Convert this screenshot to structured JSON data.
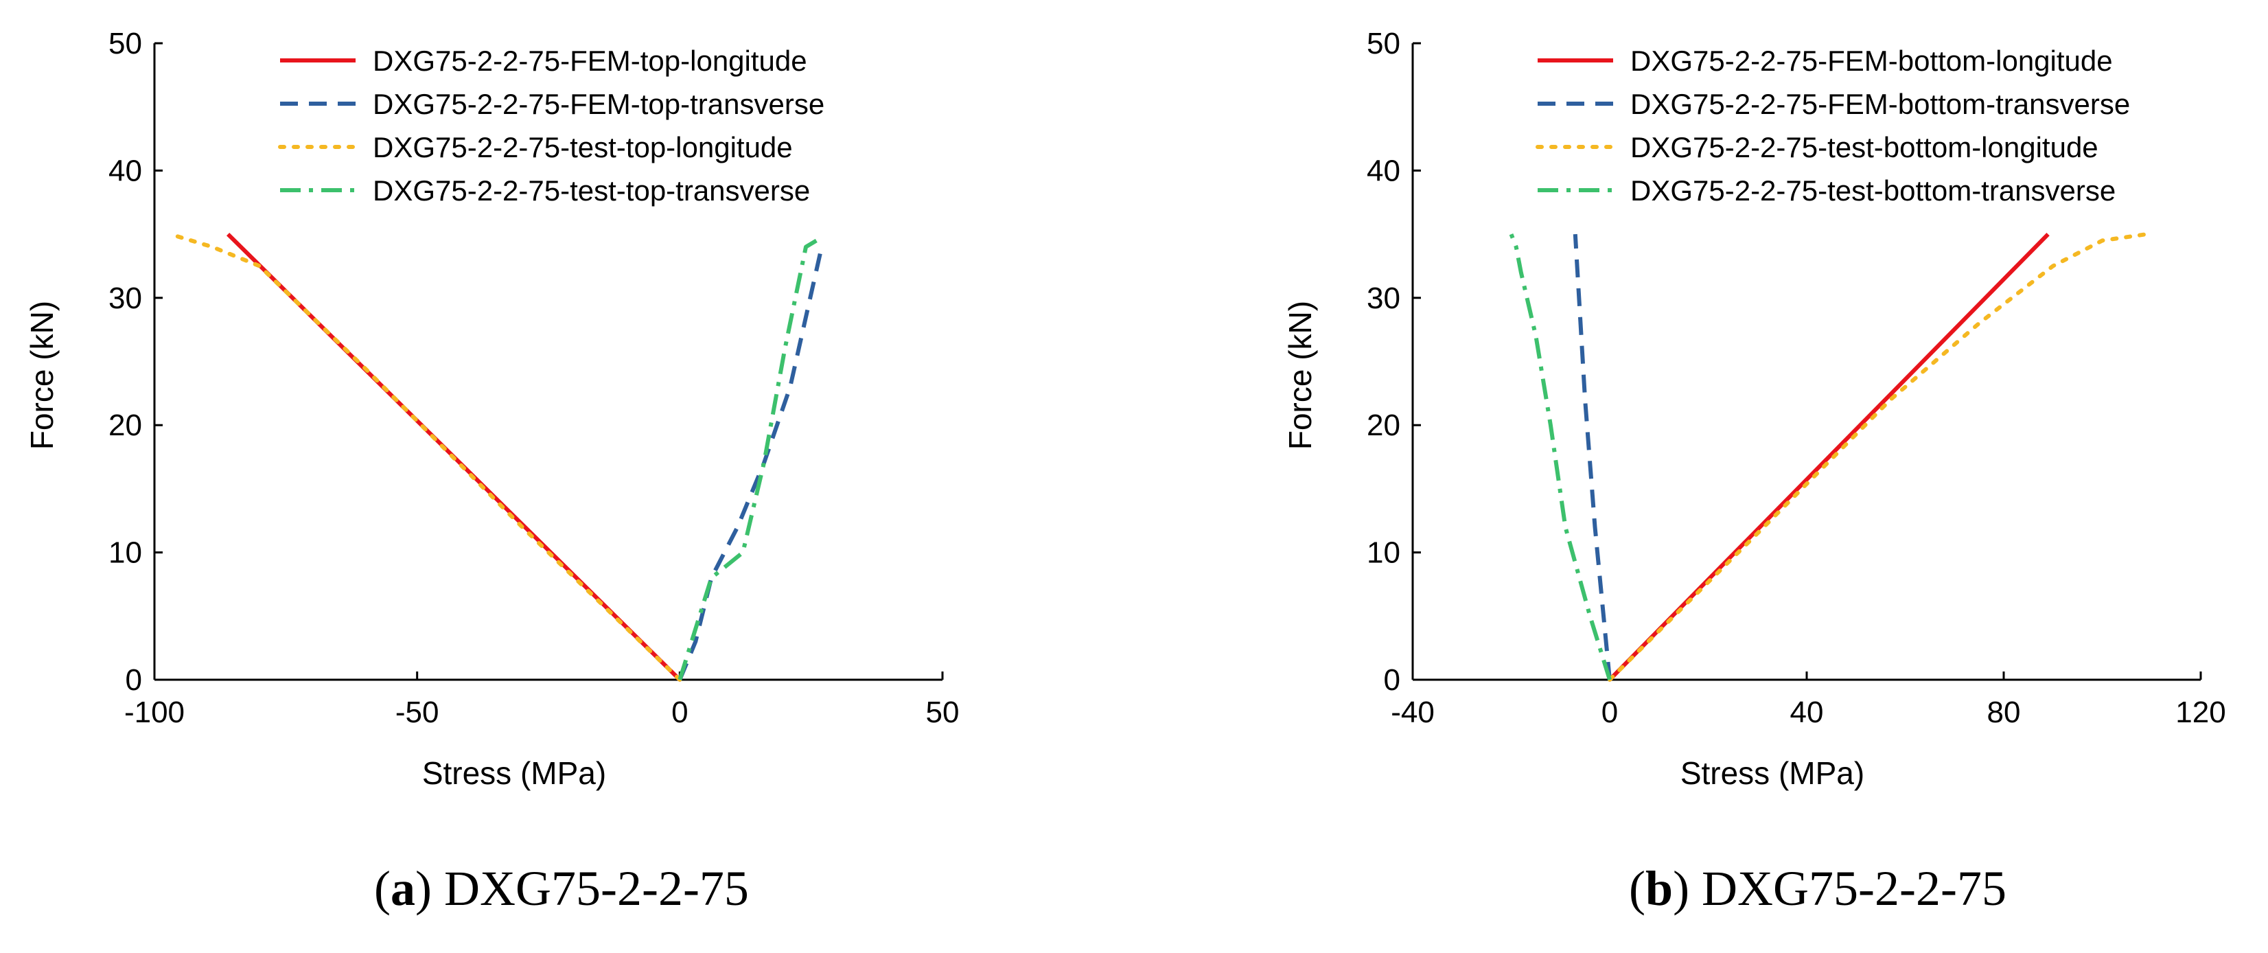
{
  "chart_data": [
    {
      "type": "line",
      "caption_letter": "a",
      "caption_text": "DXG75-2-2-75",
      "xlabel": "Stress (MPa)",
      "ylabel": "Force (kN)",
      "xlim": [
        -100,
        50
      ],
      "ylim": [
        0,
        50
      ],
      "xticks": [
        -100,
        -50,
        0,
        50
      ],
      "yticks": [
        0,
        10,
        20,
        30,
        40,
        50
      ],
      "xtick_labels": [
        "-100",
        "-50",
        "0",
        "50"
      ],
      "ytick_labels": [
        "0",
        "10",
        "20",
        "30",
        "40",
        "50"
      ],
      "grid": false,
      "legend_position": "top-right",
      "series": [
        {
          "name": "DXG75-2-2-75-FEM-top-longitude",
          "style": "solid",
          "color": "#e8141c",
          "points": [
            [
              0,
              0
            ],
            [
              -86,
              35
            ]
          ]
        },
        {
          "name": "DXG75-2-2-75-FEM-top-transverse",
          "style": "dashed",
          "color": "#2e5f9e",
          "points": [
            [
              0,
              0
            ],
            [
              3,
              3
            ],
            [
              6,
              8
            ],
            [
              11,
              12
            ],
            [
              16,
              17
            ],
            [
              21,
              23
            ],
            [
              27,
              34
            ]
          ]
        },
        {
          "name": "DXG75-2-2-75-test-top-longitude",
          "style": "dotted",
          "color": "#f5b822",
          "points": [
            [
              0,
              0
            ],
            [
              -30,
              12
            ],
            [
              -60,
              24.5
            ],
            [
              -80,
              32.5
            ],
            [
              -89,
              34
            ],
            [
              -97,
              35
            ]
          ]
        },
        {
          "name": "DXG75-2-2-75-test-top-transverse",
          "style": "dashdot",
          "color": "#3cc06c",
          "points": [
            [
              0,
              0
            ],
            [
              3,
              4
            ],
            [
              6,
              8
            ],
            [
              12,
              10
            ],
            [
              16,
              17
            ],
            [
              20,
              26
            ],
            [
              24,
              34
            ],
            [
              26,
              34.5
            ]
          ]
        }
      ]
    },
    {
      "type": "line",
      "caption_letter": "b",
      "caption_text": "DXG75-2-2-75",
      "xlabel": "Stress (MPa)",
      "ylabel": "Force (kN)",
      "xlim": [
        -40,
        120
      ],
      "ylim": [
        0,
        50
      ],
      "xticks": [
        -40,
        0,
        40,
        80,
        120
      ],
      "yticks": [
        0,
        10,
        20,
        30,
        40,
        50
      ],
      "xtick_labels": [
        "-40",
        "0",
        "40",
        "80",
        "120"
      ],
      "ytick_labels": [
        "0",
        "10",
        "20",
        "30",
        "40",
        "50"
      ],
      "grid": false,
      "legend_position": "top-right",
      "series": [
        {
          "name": "DXG75-2-2-75-FEM-bottom-longitude",
          "style": "solid",
          "color": "#e8141c",
          "points": [
            [
              0,
              0
            ],
            [
              89,
              35
            ]
          ]
        },
        {
          "name": "DXG75-2-2-75-FEM-bottom-transverse",
          "style": "dashed",
          "color": "#2e5f9e",
          "points": [
            [
              0,
              0
            ],
            [
              -3,
              12
            ],
            [
              -5,
              22
            ],
            [
              -7,
              35
            ]
          ]
        },
        {
          "name": "DXG75-2-2-75-test-bottom-longitude",
          "style": "dotted",
          "color": "#f5b822",
          "points": [
            [
              0,
              0
            ],
            [
              30,
              11.5
            ],
            [
              57,
              22
            ],
            [
              75,
              28
            ],
            [
              90,
              32.5
            ],
            [
              100,
              34.5
            ],
            [
              109,
              35
            ]
          ]
        },
        {
          "name": "DXG75-2-2-75-test-bottom-transverse",
          "style": "dashdot",
          "color": "#3cc06c",
          "points": [
            [
              0,
              0
            ],
            [
              -4,
              5
            ],
            [
              -9,
              12
            ],
            [
              -12,
              20
            ],
            [
              -15,
              27
            ],
            [
              -18,
              32
            ],
            [
              -19,
              34
            ],
            [
              -20,
              35
            ]
          ]
        }
      ]
    }
  ]
}
